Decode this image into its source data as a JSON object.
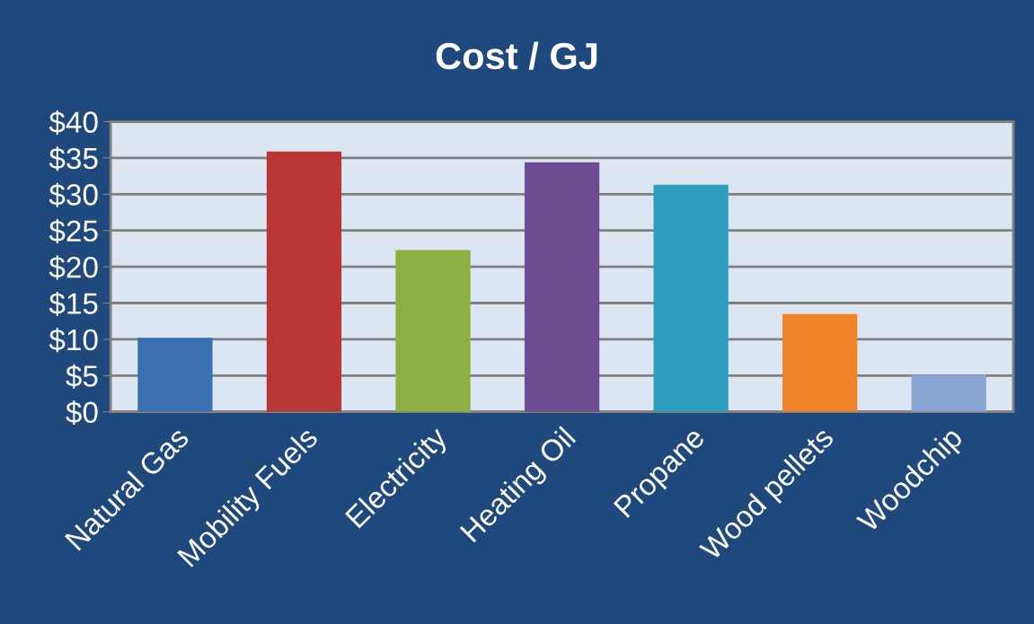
{
  "chart_data": {
    "type": "bar",
    "title": "Cost / GJ",
    "categories": [
      "Natural Gas",
      "Mobility Fuels",
      "Electricity",
      "Heating Oil",
      "Propane",
      "Wood pellets",
      "Woodchip"
    ],
    "values": [
      10.2,
      35.9,
      22.3,
      34.4,
      31.3,
      13.5,
      5.1
    ],
    "colors": [
      "#3a6fb0",
      "#b83636",
      "#8cb043",
      "#6d4c94",
      "#2f9dbd",
      "#f0842a",
      "#8aa6d4"
    ],
    "ylim": [
      0,
      40
    ],
    "yticks": [
      {
        "value": 0,
        "label": "$0"
      },
      {
        "value": 5,
        "label": "$5"
      },
      {
        "value": 10,
        "label": "$10"
      },
      {
        "value": 15,
        "label": "$15"
      },
      {
        "value": 20,
        "label": "$20"
      },
      {
        "value": 25,
        "label": "$25"
      },
      {
        "value": 30,
        "label": "$30"
      },
      {
        "value": 35,
        "label": "$35"
      },
      {
        "value": 40,
        "label": "$40"
      }
    ],
    "grid": "y"
  }
}
